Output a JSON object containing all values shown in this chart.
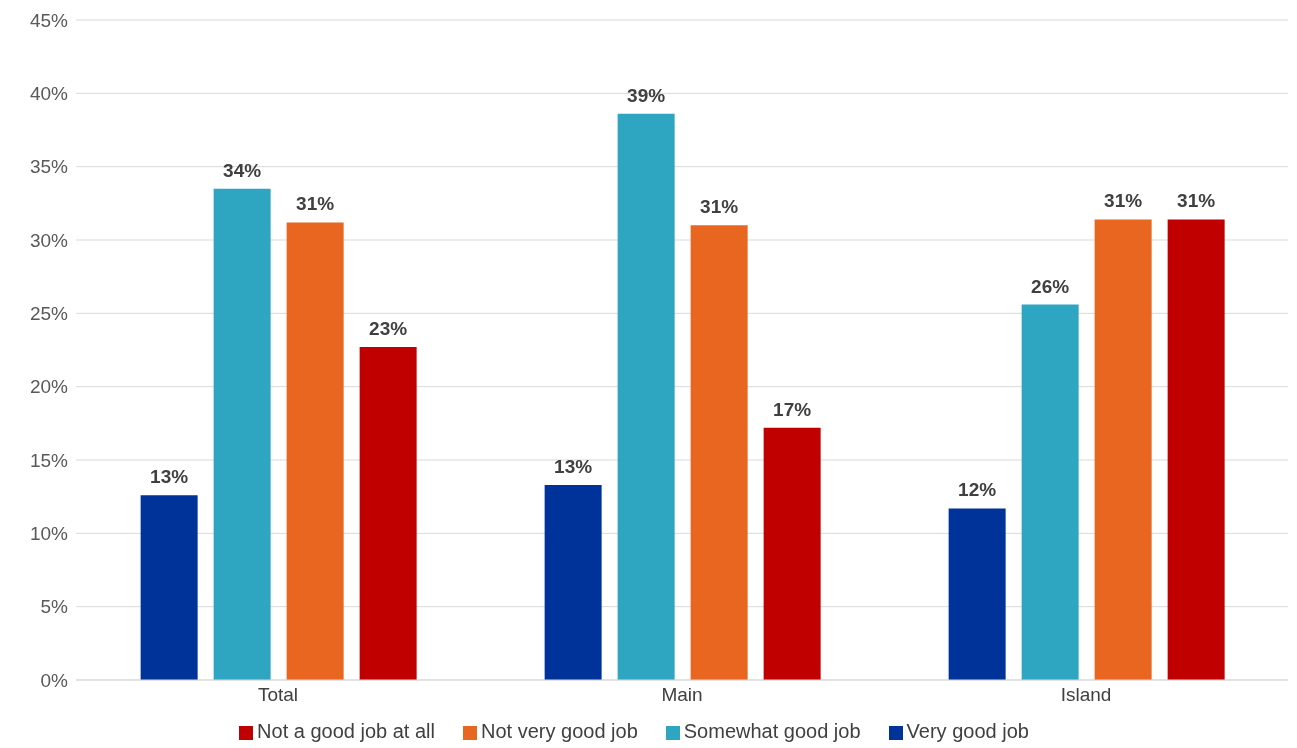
{
  "chart_data": {
    "type": "bar",
    "categories": [
      "Total",
      "Main",
      "Island"
    ],
    "series": [
      {
        "name": "Very good job",
        "color": "#003399",
        "values": [
          12.6,
          13.3,
          11.7
        ],
        "value_labels": [
          "13%",
          "13%",
          "12%"
        ]
      },
      {
        "name": "Somewhat good job",
        "color": "#2ea5c1",
        "values": [
          33.5,
          38.6,
          25.6
        ],
        "value_labels": [
          "34%",
          "39%",
          "26%"
        ]
      },
      {
        "name": "Not very good job",
        "color": "#e8661f",
        "values": [
          31.2,
          31.0,
          31.4
        ],
        "value_labels": [
          "31%",
          "31%",
          "31%"
        ]
      },
      {
        "name": "Not a good job at all",
        "color": "#c00000",
        "values": [
          22.7,
          17.2,
          31.4
        ],
        "value_labels": [
          "23%",
          "17%",
          "31%"
        ]
      }
    ],
    "ylim": [
      0,
      45
    ],
    "yticks": [
      {
        "value": 0,
        "label": "0%"
      },
      {
        "value": 5,
        "label": "5%"
      },
      {
        "value": 10,
        "label": "10%"
      },
      {
        "value": 15,
        "label": "15%"
      },
      {
        "value": 20,
        "label": "20%"
      },
      {
        "value": 25,
        "label": "25%"
      },
      {
        "value": 30,
        "label": "30%"
      },
      {
        "value": 35,
        "label": "35%"
      },
      {
        "value": 40,
        "label": "40%"
      },
      {
        "value": 45,
        "label": "45%"
      }
    ],
    "grid": "y",
    "legend": "bottom"
  }
}
